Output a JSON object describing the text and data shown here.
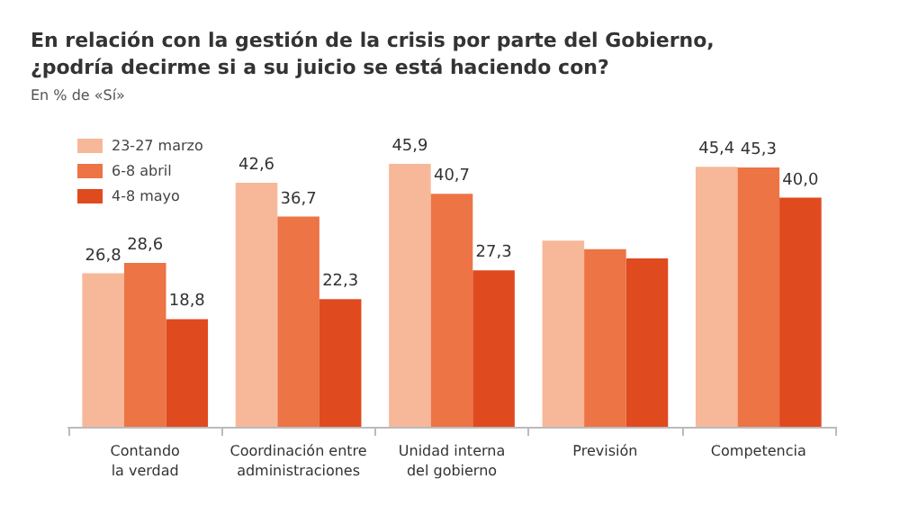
{
  "chart_data": {
    "type": "bar",
    "title": "En relación con la gestión de la crisis por parte del Gobierno,\n¿podría decirme si a su juicio se está haciendo con?",
    "subtitle": "En % de «Sí»",
    "categories": [
      "Contando\nla verdad",
      "Coordinación entre\nadministraciones",
      "Unidad interna\ndel gobierno",
      "Previsión",
      "Competencia"
    ],
    "series": [
      {
        "name": "23-27 marzo",
        "color": "#f7b89a",
        "values": [
          26.8,
          42.6,
          45.9,
          32.5,
          45.4
        ],
        "value_labels": [
          "26,8",
          "42,6",
          "45,9",
          null,
          "45,4"
        ]
      },
      {
        "name": "6-8 abril",
        "color": "#ec7445",
        "values": [
          28.6,
          36.7,
          40.7,
          31,
          45.3
        ],
        "value_labels": [
          "28,6",
          "36,7",
          "40,7",
          null,
          "45,3"
        ]
      },
      {
        "name": "4-8 mayo",
        "color": "#e04a1f",
        "values": [
          18.8,
          22.3,
          27.3,
          29.4,
          40.0
        ],
        "value_labels": [
          "18,8",
          "22,3",
          "27,3",
          null,
          "40,0"
        ]
      }
    ],
    "legend": "top left"
  }
}
